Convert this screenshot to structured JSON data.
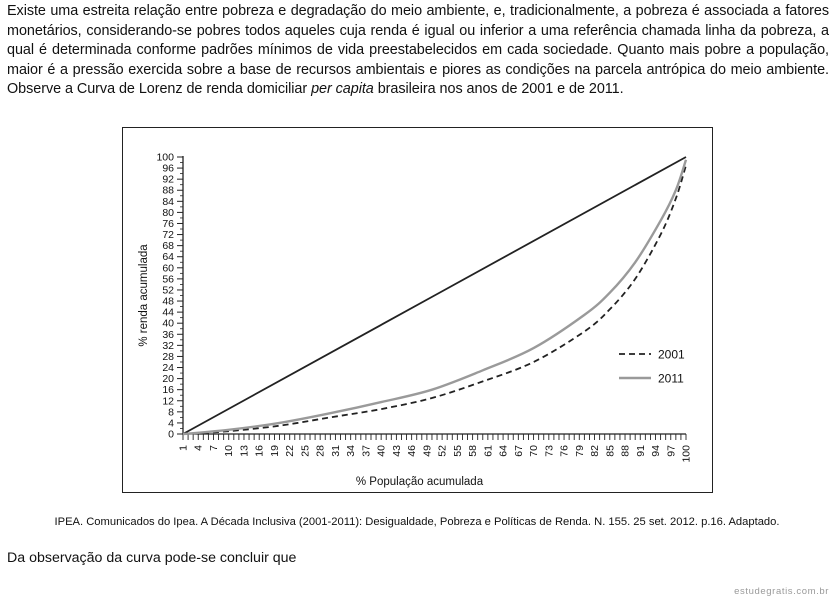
{
  "intro": {
    "part1": "Existe uma estreita relação entre pobreza e degradação do meio ambiente, e, tradicionalmente, a pobreza é associada a fatores monetários, considerando-se pobres todos aqueles cuja renda é igual ou inferior a uma referência chamada linha da pobreza, a qual é determinada conforme padrões mínimos de vida preestabelecidos em cada sociedade. Quanto mais pobre a população, maior é a pressão exercida sobre a base de recursos ambientais e piores as condições na parcela an­trópica do meio ambiente. Observe a Curva de Lorenz de renda domiciliar ",
    "italic": "per capita",
    "part2": " brasileira nos anos de 2001 e de 2011."
  },
  "chart_data": {
    "type": "line",
    "xlabel": "% População acumulada",
    "ylabel": "% renda acumulada",
    "xlim": [
      1,
      100
    ],
    "ylim": [
      0,
      100
    ],
    "xticks": [
      1,
      4,
      7,
      10,
      13,
      16,
      19,
      22,
      25,
      28,
      31,
      34,
      37,
      40,
      43,
      46,
      49,
      52,
      55,
      58,
      61,
      64,
      67,
      70,
      73,
      76,
      79,
      82,
      85,
      88,
      91,
      94,
      97,
      100
    ],
    "yticks": [
      0,
      4,
      8,
      12,
      16,
      20,
      24,
      28,
      32,
      36,
      40,
      44,
      48,
      52,
      56,
      60,
      64,
      68,
      72,
      76,
      80,
      84,
      88,
      92,
      96,
      100
    ],
    "legend_position": "right",
    "series": [
      {
        "name": "",
        "style": "solid-black",
        "x": [
          1,
          100
        ],
        "y": [
          0,
          100
        ]
      },
      {
        "name": "2001",
        "style": "dashed",
        "color": "#222222",
        "x": [
          1,
          10,
          20,
          30,
          40,
          50,
          60,
          70,
          80,
          85,
          90,
          95,
          98,
          100
        ],
        "y": [
          0,
          1,
          3,
          6,
          9,
          13,
          19,
          26,
          37,
          45,
          56,
          72,
          85,
          97
        ]
      },
      {
        "name": "2011",
        "style": "solid-gray",
        "color": "#9a9a9a",
        "x": [
          1,
          10,
          20,
          30,
          40,
          50,
          60,
          70,
          80,
          85,
          90,
          95,
          98,
          100
        ],
        "y": [
          0,
          1.5,
          4,
          7.5,
          11.5,
          16,
          23,
          31,
          43,
          51,
          62,
          77,
          88,
          99
        ]
      }
    ]
  },
  "source": "IPEA. Comunicados do Ipea. A Década Inclusiva (2001-2011): Desigualdade, Pobreza e Políticas de Renda. N. 155. 25 set. 2012. p.16. Adaptado.",
  "question": "Da observação da curva pode-se concluir que",
  "watermark": "estudegratis.com.br"
}
